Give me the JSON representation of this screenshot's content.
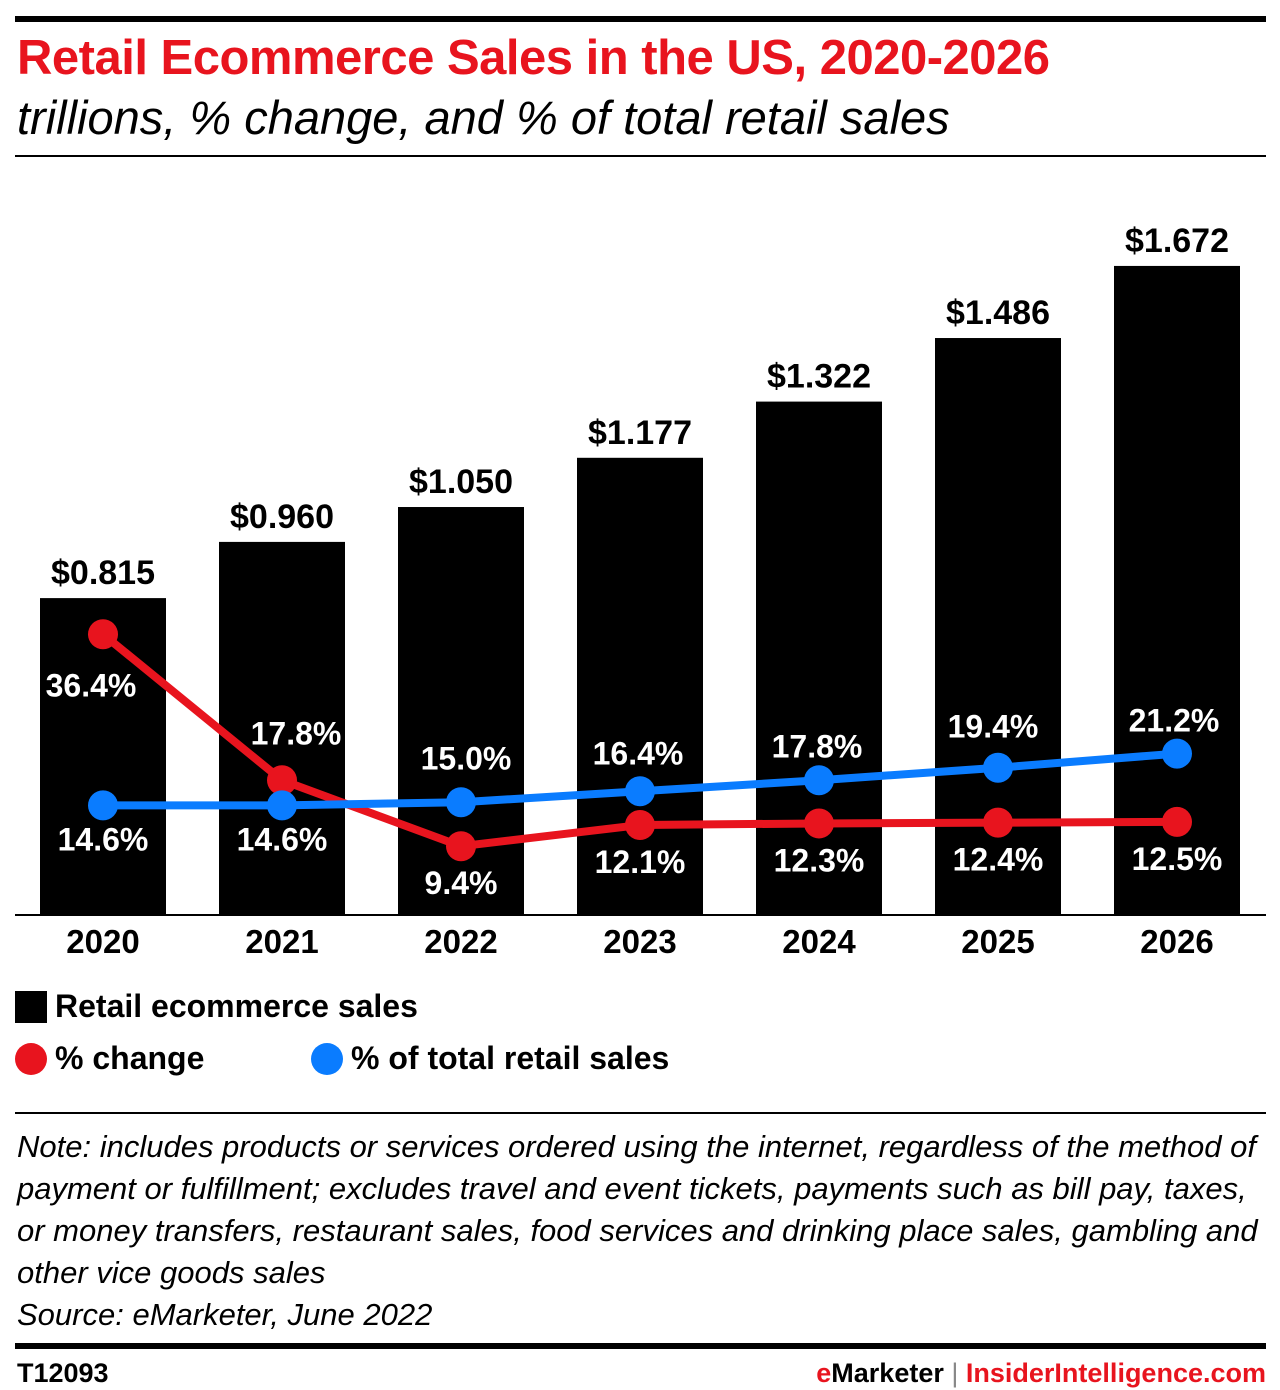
{
  "chart_data": {
    "type": "bar",
    "title": "Retail Ecommerce Sales in the US, 2020-2026",
    "subtitle": "trillions, % change, and % of total retail sales",
    "categories": [
      "2020",
      "2021",
      "2022",
      "2023",
      "2024",
      "2025",
      "2026"
    ],
    "series": [
      {
        "name": "Retail ecommerce sales",
        "type": "bar",
        "color": "#000000",
        "values": [
          0.815,
          0.96,
          1.05,
          1.177,
          1.322,
          1.486,
          1.672
        ],
        "labels": [
          "$0.815",
          "$0.960",
          "$1.050",
          "$1.177",
          "$1.322",
          "$1.486",
          "$1.672"
        ]
      },
      {
        "name": "% change",
        "type": "line",
        "color": "#e8141e",
        "values": [
          36.4,
          17.8,
          9.4,
          12.1,
          12.3,
          12.4,
          12.5
        ],
        "labels": [
          "36.4%",
          "17.8%",
          "9.4%",
          "12.1%",
          "12.3%",
          "12.4%",
          "12.5%"
        ]
      },
      {
        "name": "% of total retail sales",
        "type": "line",
        "color": "#0a7cff",
        "values": [
          14.6,
          14.6,
          15.0,
          16.4,
          17.8,
          19.4,
          21.2
        ],
        "labels": [
          "14.6%",
          "14.6%",
          "15.0%",
          "16.4%",
          "17.8%",
          "19.4%",
          "21.2%"
        ]
      }
    ],
    "grid": false,
    "legend_placement": "bottom-left"
  },
  "note": "Note: includes products or services ordered using the internet, regardless of the method of payment or fulfillment; excludes travel and event tickets, payments such as bill pay, taxes, or money transfers, restaurant sales, food services and drinking place sales, gambling and other vice goods sales",
  "source": "Source: eMarketer, June 2022",
  "footer": {
    "id": "T12093",
    "brand_e": "e",
    "brand_rest": "Marketer",
    "separator": "|",
    "site": "InsiderIntelligence.com"
  }
}
